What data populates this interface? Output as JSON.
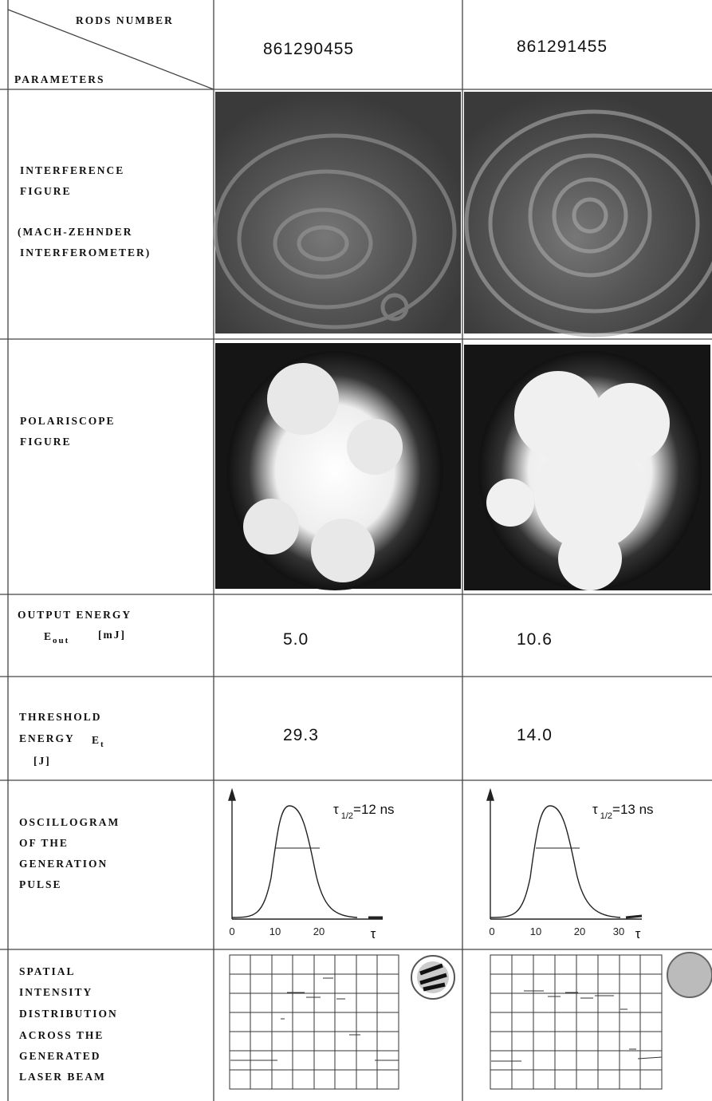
{
  "header": {
    "corner_top": "RODS NUMBER",
    "corner_bottom": "PARAMETERS",
    "columns": [
      "861290455",
      "861291455"
    ]
  },
  "rows": {
    "interference": {
      "label": [
        "INTERFERENCE",
        "FIGURE",
        "(MACH-ZEHNDER",
        "INTERFEROMETER)"
      ]
    },
    "polariscope": {
      "label": [
        "POLARISCOPE",
        "FIGURE"
      ]
    },
    "output": {
      "label": [
        "OUTPUT ENERGY"
      ],
      "symbol": "E",
      "subscript": "out",
      "unit": "[mJ]",
      "values": [
        "5.0",
        "10.6"
      ]
    },
    "threshold": {
      "label": [
        "THRESHOLD",
        "ENERGY"
      ],
      "symbol": "E",
      "subscript": "t",
      "unit": "[J]",
      "values": [
        "29.3",
        "14.0"
      ]
    },
    "oscillogram": {
      "label": [
        "OSCILLOGRAM",
        "OF THE",
        "GENERATION",
        "PULSE"
      ],
      "plots": [
        {
          "symbol": "τ",
          "subscript": "1/2",
          "text": "=12 ns",
          "ticks": [
            "0",
            "10",
            "20"
          ],
          "axis": "τ"
        },
        {
          "symbol": "τ",
          "subscript": "1/2",
          "text": "=13 ns",
          "ticks": [
            "0",
            "10",
            "20",
            "30"
          ],
          "axis": "τ"
        }
      ]
    },
    "spatial": {
      "label": [
        "SPATIAL",
        "INTENSITY",
        "DISTRIBUTION",
        "ACROSS THE",
        "GENERATED",
        "LASER BEAM"
      ]
    }
  }
}
